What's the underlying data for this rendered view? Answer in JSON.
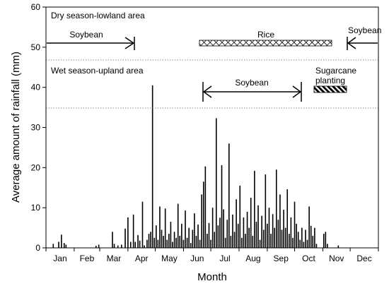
{
  "chart_data": {
    "type": "bar",
    "title": "",
    "xlabel": "Month",
    "ylabel": "Average amount of rainfall (mm)",
    "ylim": [
      0,
      60
    ],
    "yticks": [
      0,
      10,
      20,
      30,
      40,
      50,
      60
    ],
    "xlim_day": [
      0,
      365
    ],
    "month_labels": [
      "Jan",
      "Feb",
      "Mar",
      "Apr",
      "May",
      "Jun",
      "Jul",
      "Aug",
      "Sep",
      "Oct",
      "Nov",
      "Dec"
    ],
    "grid": false,
    "colors": {
      "bars": "#000000",
      "divider": "#888888"
    },
    "daily_rainfall": [
      {
        "day": 8,
        "mm": 1.0
      },
      {
        "day": 14,
        "mm": 1.5
      },
      {
        "day": 17,
        "mm": 3.3
      },
      {
        "day": 20,
        "mm": 1.2
      },
      {
        "day": 22,
        "mm": 0.8
      },
      {
        "day": 55,
        "mm": 0.5
      },
      {
        "day": 58,
        "mm": 0.8
      },
      {
        "day": 73,
        "mm": 4.0
      },
      {
        "day": 75,
        "mm": 1.0
      },
      {
        "day": 79,
        "mm": 0.6
      },
      {
        "day": 83,
        "mm": 0.8
      },
      {
        "day": 87,
        "mm": 4.8
      },
      {
        "day": 90,
        "mm": 7.6
      },
      {
        "day": 93,
        "mm": 1.5
      },
      {
        "day": 96,
        "mm": 8.3
      },
      {
        "day": 98,
        "mm": 1.5
      },
      {
        "day": 101,
        "mm": 3.2
      },
      {
        "day": 103,
        "mm": 1.8
      },
      {
        "day": 106,
        "mm": 11.5
      },
      {
        "day": 108,
        "mm": 0.6
      },
      {
        "day": 111,
        "mm": 2.0
      },
      {
        "day": 113,
        "mm": 3.5
      },
      {
        "day": 115,
        "mm": 4.0
      },
      {
        "day": 117,
        "mm": 40.5
      },
      {
        "day": 119,
        "mm": 2.5
      },
      {
        "day": 121,
        "mm": 5.6
      },
      {
        "day": 123,
        "mm": 2.0
      },
      {
        "day": 125,
        "mm": 10.3
      },
      {
        "day": 127,
        "mm": 4.5
      },
      {
        "day": 129,
        "mm": 3.0
      },
      {
        "day": 131,
        "mm": 9.8
      },
      {
        "day": 133,
        "mm": 2.0
      },
      {
        "day": 135,
        "mm": 3.5
      },
      {
        "day": 137,
        "mm": 6.5
      },
      {
        "day": 139,
        "mm": 1.5
      },
      {
        "day": 141,
        "mm": 4.0
      },
      {
        "day": 143,
        "mm": 2.5
      },
      {
        "day": 145,
        "mm": 11.0
      },
      {
        "day": 147,
        "mm": 3.0
      },
      {
        "day": 149,
        "mm": 6.0
      },
      {
        "day": 151,
        "mm": 2.0
      },
      {
        "day": 153,
        "mm": 9.3
      },
      {
        "day": 155,
        "mm": 2.5
      },
      {
        "day": 157,
        "mm": 5.0
      },
      {
        "day": 159,
        "mm": 1.2
      },
      {
        "day": 161,
        "mm": 4.5
      },
      {
        "day": 163,
        "mm": 8.6
      },
      {
        "day": 165,
        "mm": 3.0
      },
      {
        "day": 167,
        "mm": 5.8
      },
      {
        "day": 169,
        "mm": 2.0
      },
      {
        "day": 171,
        "mm": 13.3
      },
      {
        "day": 173,
        "mm": 16.5
      },
      {
        "day": 175,
        "mm": 20.3
      },
      {
        "day": 177,
        "mm": 3.5
      },
      {
        "day": 179,
        "mm": 6.2
      },
      {
        "day": 181,
        "mm": 2.0
      },
      {
        "day": 183,
        "mm": 10.0
      },
      {
        "day": 185,
        "mm": 4.0
      },
      {
        "day": 187,
        "mm": 32.3
      },
      {
        "day": 189,
        "mm": 5.6
      },
      {
        "day": 191,
        "mm": 7.5
      },
      {
        "day": 193,
        "mm": 20.6
      },
      {
        "day": 195,
        "mm": 9.6
      },
      {
        "day": 197,
        "mm": 2.5
      },
      {
        "day": 199,
        "mm": 7.0
      },
      {
        "day": 201,
        "mm": 26.0
      },
      {
        "day": 203,
        "mm": 3.0
      },
      {
        "day": 205,
        "mm": 8.3
      },
      {
        "day": 207,
        "mm": 4.0
      },
      {
        "day": 209,
        "mm": 12.1
      },
      {
        "day": 211,
        "mm": 6.0
      },
      {
        "day": 213,
        "mm": 15.5
      },
      {
        "day": 215,
        "mm": 2.5
      },
      {
        "day": 217,
        "mm": 7.6
      },
      {
        "day": 219,
        "mm": 3.5
      },
      {
        "day": 221,
        "mm": 9.0
      },
      {
        "day": 223,
        "mm": 5.0
      },
      {
        "day": 225,
        "mm": 12.5
      },
      {
        "day": 227,
        "mm": 3.0
      },
      {
        "day": 229,
        "mm": 19.2
      },
      {
        "day": 231,
        "mm": 6.5
      },
      {
        "day": 233,
        "mm": 10.6
      },
      {
        "day": 235,
        "mm": 2.0
      },
      {
        "day": 237,
        "mm": 8.0
      },
      {
        "day": 239,
        "mm": 4.5
      },
      {
        "day": 241,
        "mm": 18.3
      },
      {
        "day": 243,
        "mm": 6.0
      },
      {
        "day": 245,
        "mm": 10.0
      },
      {
        "day": 247,
        "mm": 3.5
      },
      {
        "day": 249,
        "mm": 8.4
      },
      {
        "day": 251,
        "mm": 5.0
      },
      {
        "day": 253,
        "mm": 19.5
      },
      {
        "day": 255,
        "mm": 7.0
      },
      {
        "day": 257,
        "mm": 13.3
      },
      {
        "day": 259,
        "mm": 4.5
      },
      {
        "day": 261,
        "mm": 9.5
      },
      {
        "day": 263,
        "mm": 5.0
      },
      {
        "day": 265,
        "mm": 14.6
      },
      {
        "day": 267,
        "mm": 3.5
      },
      {
        "day": 269,
        "mm": 7.6
      },
      {
        "day": 271,
        "mm": 2.5
      },
      {
        "day": 273,
        "mm": 11.5
      },
      {
        "day": 275,
        "mm": 6.0
      },
      {
        "day": 277,
        "mm": 4.0
      },
      {
        "day": 279,
        "mm": 2.0
      },
      {
        "day": 281,
        "mm": 5.0
      },
      {
        "day": 283,
        "mm": 1.5
      },
      {
        "day": 285,
        "mm": 4.5
      },
      {
        "day": 287,
        "mm": 2.0
      },
      {
        "day": 289,
        "mm": 10.3
      },
      {
        "day": 291,
        "mm": 5.5
      },
      {
        "day": 293,
        "mm": 3.0
      },
      {
        "day": 295,
        "mm": 5.0
      },
      {
        "day": 297,
        "mm": 1.0
      },
      {
        "day": 305,
        "mm": 3.5
      },
      {
        "day": 307,
        "mm": 4.0
      },
      {
        "day": 309,
        "mm": 1.0
      },
      {
        "day": 321,
        "mm": 0.6
      }
    ],
    "annotations": {
      "dry_title": "Dry season-lowland area",
      "wet_title": "Wet season-upland area",
      "dry_soybean_1": "Soybean",
      "rice": "Rice",
      "dry_soybean_2": "Soybean",
      "wet_soybean": "Soybean",
      "sugarcane_line1": "Sugarcane",
      "sugarcane_line2": "planting"
    }
  }
}
